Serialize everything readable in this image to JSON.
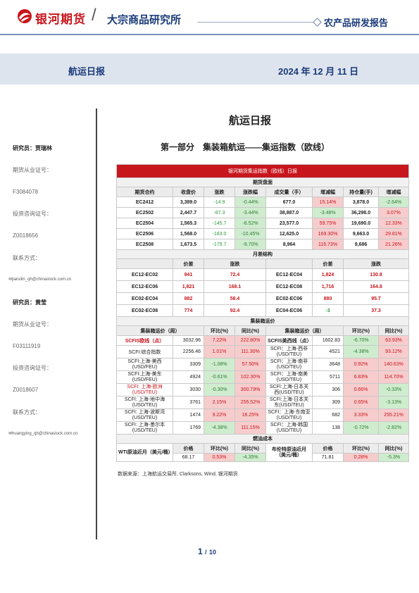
{
  "header": {
    "logo_text": "银河期货",
    "institute": "大宗商品研究所",
    "report_type": "农产品研发报告"
  },
  "band": {
    "title": "航运日报",
    "date": "2024 年 12 月 11 日"
  },
  "sidebar": {
    "r1_label": "研究员：贾瑞林",
    "r1_lic_label": "期货从业证号：",
    "r1_lic": "F3084078",
    "r1_inv_label": "投资咨询证号：",
    "r1_inv": "Z0018656",
    "r1_contact_label": "联系方式：",
    "r1_email": "jiaruilin_qh@chinastock.com.cn",
    "r2_label": "研究员：黄莹",
    "r2_lic_label": "期货从业证号：",
    "r2_lic": "F03111919",
    "r2_inv_label": "投资咨询证号：",
    "r2_inv": "Z0018607",
    "r2_contact_label": "联系方式：",
    "r2_email": "huangying_qh@chinastock.com.cn"
  },
  "doc_title": "航运日报",
  "part_title": "第一部分　集装箱航运——集运指数（欧线）",
  "table": {
    "title": "银河期货集运指数（欧线）日报",
    "sec_futures": "期货盘面",
    "fut_headers": [
      "期货合约",
      "收盘价",
      "涨跌",
      "涨跌幅",
      "成交量（手）",
      "增减幅",
      "持仓量(手)",
      "增减幅"
    ],
    "futures": [
      [
        "EC2412",
        "3,389.0",
        "-14.9",
        "-0.44%",
        "677.0",
        "15.14%",
        "3,878.0",
        "-2.64%"
      ],
      [
        "EC2502",
        "2,447.7",
        "-87.3",
        "-3.44%",
        "38,887.0",
        "-3.48%",
        "36,298.0",
        "3.07%"
      ],
      [
        "EC2504",
        "1,565.3",
        "-145.7",
        "-8.52%",
        "23,577.0",
        "59.75%",
        "19,690.0",
        "12.33%"
      ],
      [
        "EC2506",
        "1,568.0",
        "-183.0",
        "-10.45%",
        "12,625.0",
        "169.30%",
        "9,663.0",
        "29.81%"
      ],
      [
        "EC2508",
        "1,673.5",
        "-179.7",
        "-9.70%",
        "8,964",
        "116.73%",
        "9,686",
        "21.26%"
      ]
    ],
    "sec_spread": "月差结构",
    "spread_headers": [
      "价差",
      "涨跌",
      "价差",
      "涨跌"
    ],
    "spreads": [
      [
        "EC12-EC02",
        "941",
        "72.4",
        "EC12-EC04",
        "1,824",
        "130.8"
      ],
      [
        "EC12-EC06",
        "1,821",
        "168.1",
        "EC12-EC08",
        "1,716",
        "164.8"
      ],
      [
        "EC02-EC04",
        "882",
        "58.4",
        "EC02-EC06",
        "880",
        "95.7"
      ],
      [
        "EC02-EC08",
        "774",
        "92.4",
        "EC04-EC06",
        "-3",
        "37.3"
      ]
    ],
    "sec_rates": "集装箱运价",
    "rate_headers": [
      "集装箱运价（周）",
      "",
      "环比(%)",
      "同比(%)",
      "集装箱运价（周）",
      "",
      "环比(%)",
      "同比(%)"
    ],
    "rates": [
      [
        "SCFIS欧线（点）",
        "3032.96",
        "7.22%",
        "222.80%",
        "SCFIS美西线（点）",
        "1602.83",
        "-6.70%",
        "63.93%"
      ],
      [
        "SCFI:综合指数",
        "2256.46",
        "1.01%",
        "111.30%",
        "SCFI：上海-西非(USD/TEU)",
        "4521",
        "-4.38%",
        "93.12%"
      ],
      [
        "SCFI:上海-美西(USD/FEU)",
        "3309",
        "-1.08%",
        "57.50%",
        "SCFI：上海-南非(USD/TEU)",
        "3648",
        "0.92%",
        "140.63%"
      ],
      [
        "SCFI:上海-美东(USD/FEU)",
        "4924",
        "-0.61%",
        "102.30%",
        "SCFI：上海-南美(USD/TEU)",
        "5711",
        "6.83%",
        "114.70%"
      ],
      [
        "SCFI: 上海-欧洲(USD/TEU)",
        "3030",
        "-0.30%",
        "300.79%",
        "SCFI:上海-日本关西(USD/TEU)",
        "306",
        "0.66%",
        "-0.33%"
      ],
      [
        "SCFI: 上海-地中海(USD/TEU)",
        "3761",
        "2.15%",
        "255.52%",
        "SCFI:上海-日本关东(USD/TEU)",
        "309",
        "0.65%",
        "-3.13%"
      ],
      [
        "SCFI: 上海-波斯湾(USD/TEU)",
        "1474",
        "9.22%",
        "16.25%",
        "SCFI：上海-东南亚(USD/TEU)",
        "682",
        "3.33%",
        "255.21%"
      ],
      [
        "SCFI: 上海-墨尔本(USD/TEU)",
        "1769",
        "-4.38%",
        "111.15%",
        "SCFI：上海-韩国(USD/TEU)",
        "138",
        "-0.72%",
        "-2.82%"
      ]
    ],
    "sec_fuel": "燃油成本",
    "fuel_headers": [
      "价格",
      "环比(%)",
      "同比(%)",
      "价格",
      "环比(%)",
      "同比(%)"
    ],
    "fuel": {
      "wti_label": "WTI原油近月（美元/桶）",
      "wti": [
        "68.17",
        "0.53%",
        "-4.35%"
      ],
      "brent_label": "布伦特原油近月（美元/桶）",
      "brent": [
        "71.81",
        "0.28%",
        "-5.3%"
      ]
    }
  },
  "source": "数据来源：上海航运交易所, Clarksons, Wind, 银河期货",
  "page": {
    "current": "1",
    "sep": "/",
    "total": "10"
  }
}
